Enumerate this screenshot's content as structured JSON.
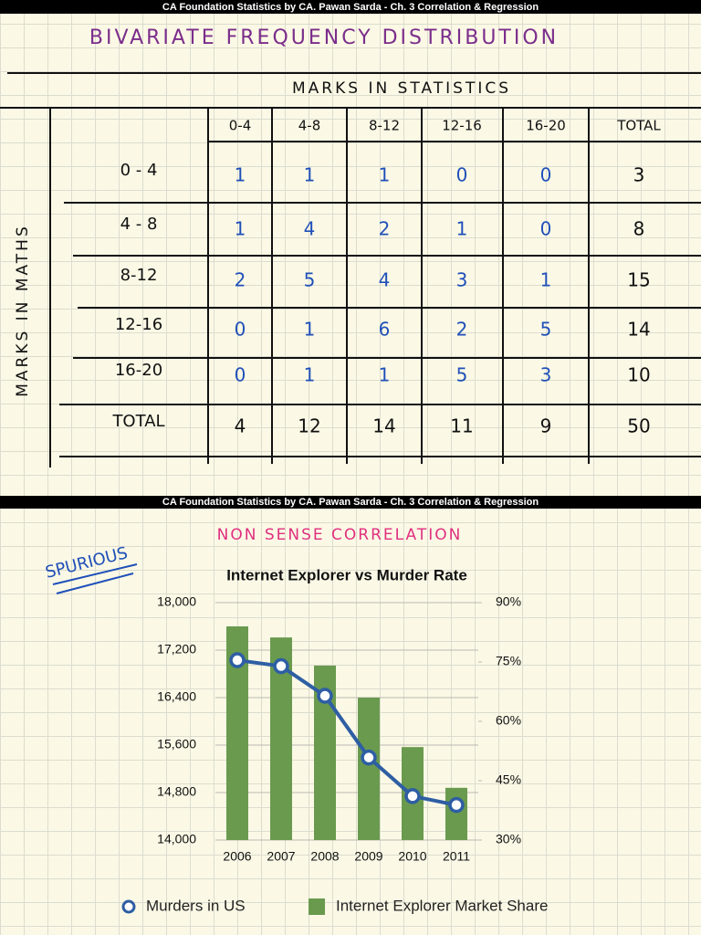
{
  "slide1": {
    "banner": "CA Foundation Statistics by CA. Pawan Sarda - Ch. 3 Correlation & Regression",
    "title": "BIVARIATE FREQUENCY DISTRIBUTION",
    "col_axis": "MARKS IN STATISTICS",
    "row_axis": "MARKS IN MATHS",
    "table": {
      "header": [
        "0-4",
        "4-8",
        "8-12",
        "12-16",
        "16-20",
        "TOTAL"
      ],
      "rows": [
        [
          "0 - 4",
          1,
          1,
          1,
          0,
          0,
          3
        ],
        [
          "4 - 8",
          1,
          4,
          2,
          1,
          0,
          8
        ],
        [
          "8-12",
          2,
          5,
          4,
          3,
          1,
          15
        ],
        [
          "12-16",
          0,
          1,
          6,
          2,
          5,
          14
        ],
        [
          "16-20",
          0,
          1,
          1,
          5,
          3,
          10
        ],
        [
          "TOTAL",
          4,
          12,
          14,
          11,
          9,
          50
        ]
      ]
    }
  },
  "slide2": {
    "banner": "CA Foundation Statistics by CA. Pawan Sarda - Ch. 3 Correlation & Regression",
    "heading": "NON SENSE CORRELATION",
    "note": "SPURIOUS"
  },
  "chart_data": {
    "type": "bar",
    "title": "Internet Explorer vs Murder Rate",
    "categories": [
      "2006",
      "2007",
      "2008",
      "2009",
      "2010",
      "2011"
    ],
    "series": [
      {
        "name": "Murders in US",
        "type": "line",
        "color": "#2e5ea3",
        "values": [
          17030,
          16930,
          16430,
          15390,
          14740,
          14590
        ]
      },
      {
        "name": "Internet Explorer Market Share",
        "color": "#6a9a4e",
        "axis": "y2",
        "values": [
          84,
          81.2,
          74.1,
          66,
          53.5,
          43.2
        ]
      }
    ],
    "ylim": [
      14000,
      18000
    ],
    "yticks": [
      {
        "value": 14000,
        "label": "14,000"
      },
      {
        "value": 14800,
        "label": "14,800"
      },
      {
        "value": 15600,
        "label": "15,600"
      },
      {
        "value": 16400,
        "label": "16,400"
      },
      {
        "value": 17200,
        "label": "17,200"
      },
      {
        "value": 18000,
        "label": "18,000"
      }
    ],
    "y2lim": [
      30,
      90
    ],
    "y2ticks": [
      {
        "value": 30,
        "label": "30%"
      },
      {
        "value": 45,
        "label": "45%"
      },
      {
        "value": 60,
        "label": "60%"
      },
      {
        "value": 75,
        "label": "75%"
      },
      {
        "value": 90,
        "label": "90%"
      }
    ],
    "grid": true,
    "legend": "bottom"
  }
}
